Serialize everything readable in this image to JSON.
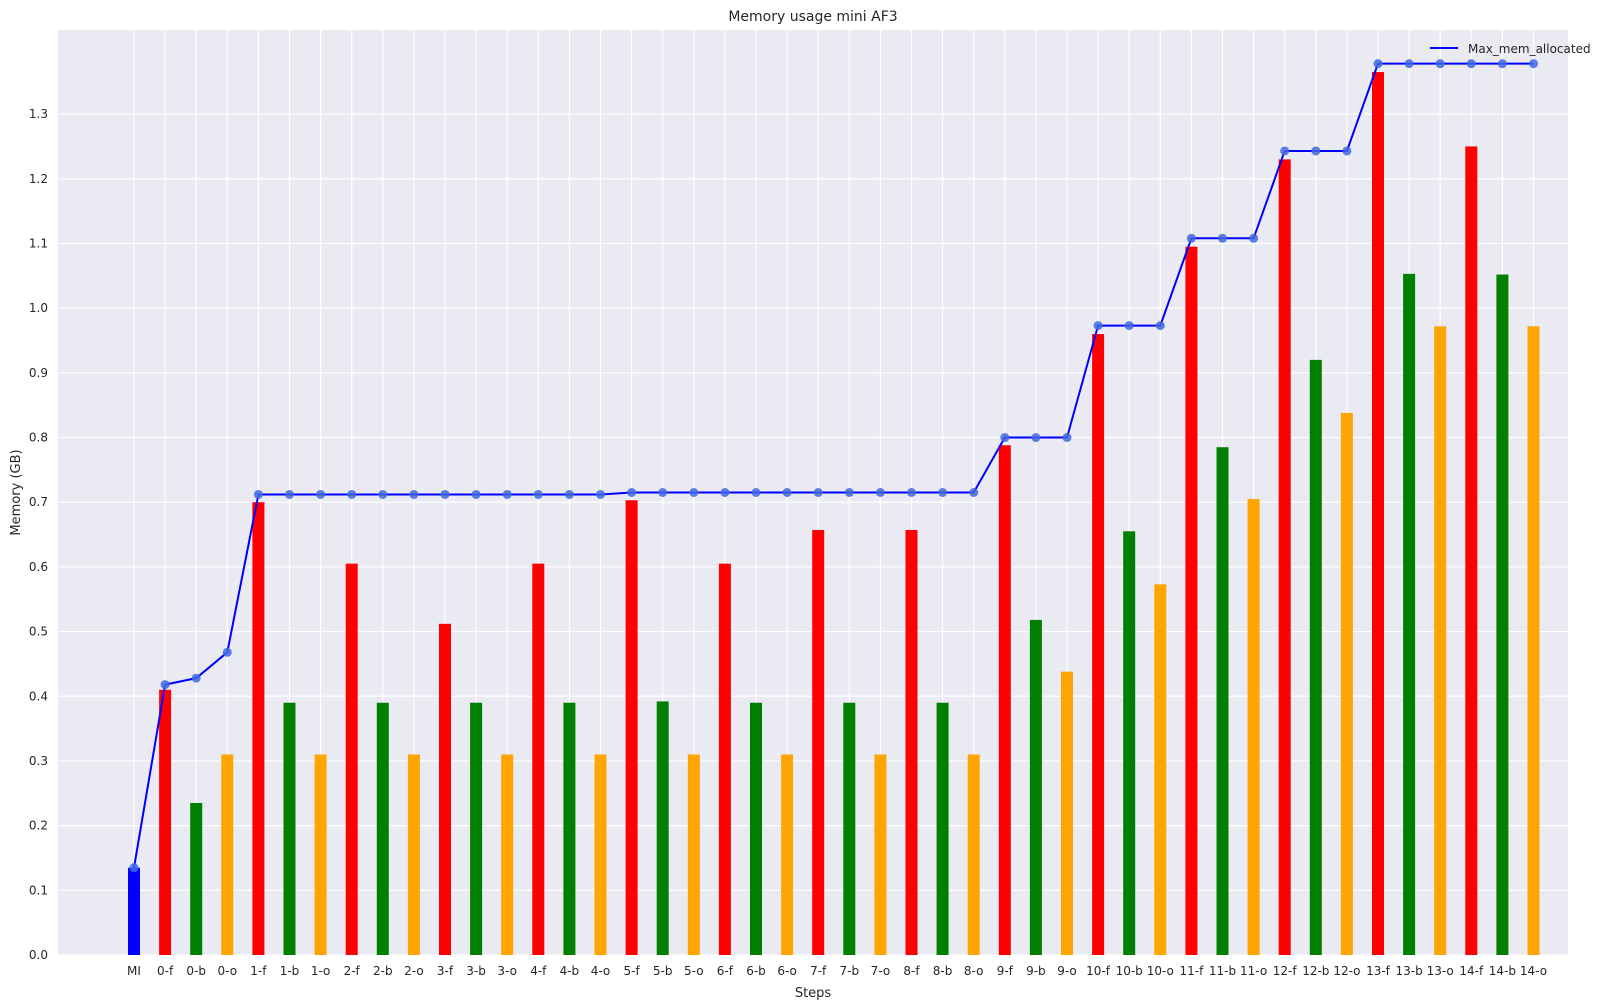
{
  "chart_data": {
    "type": "bar",
    "title": "Memory usage mini AF3",
    "xlabel": "Steps",
    "ylabel": "Memory (GB)",
    "ylim": [
      0,
      1.43
    ],
    "yticks": [
      0.0,
      0.1,
      0.2,
      0.3,
      0.4,
      0.5,
      0.6,
      0.7,
      0.8,
      0.9,
      1.0,
      1.1,
      1.2,
      1.3
    ],
    "grid": true,
    "legend_position": "top-right",
    "categories": [
      "MI",
      "0-f",
      "0-b",
      "0-o",
      "1-f",
      "1-b",
      "1-o",
      "2-f",
      "2-b",
      "2-o",
      "3-f",
      "3-b",
      "3-o",
      "4-f",
      "4-b",
      "4-o",
      "5-f",
      "5-b",
      "5-o",
      "6-f",
      "6-b",
      "6-o",
      "7-f",
      "7-b",
      "7-o",
      "8-f",
      "8-b",
      "8-o",
      "9-f",
      "9-b",
      "9-o",
      "10-f",
      "10-b",
      "10-o",
      "11-f",
      "11-b",
      "11-o",
      "12-f",
      "12-b",
      "12-o",
      "13-f",
      "13-b",
      "13-o",
      "14-f",
      "14-b",
      "14-o"
    ],
    "values": [
      0.135,
      0.41,
      0.235,
      0.31,
      0.7,
      0.39,
      0.31,
      0.605,
      0.39,
      0.31,
      0.512,
      0.39,
      0.31,
      0.605,
      0.39,
      0.31,
      0.703,
      0.392,
      0.31,
      0.605,
      0.39,
      0.31,
      0.657,
      0.39,
      0.31,
      0.657,
      0.39,
      0.31,
      0.788,
      0.518,
      0.438,
      0.96,
      0.655,
      0.573,
      1.095,
      0.785,
      0.705,
      1.23,
      0.92,
      0.838,
      1.365,
      1.053,
      0.972,
      1.25,
      1.052,
      0.972
    ],
    "bar_colors": [
      "#0000ff",
      "#ff0000",
      "#008000",
      "#ffa500",
      "#ff0000",
      "#008000",
      "#ffa500",
      "#ff0000",
      "#008000",
      "#ffa500",
      "#ff0000",
      "#008000",
      "#ffa500",
      "#ff0000",
      "#008000",
      "#ffa500",
      "#ff0000",
      "#008000",
      "#ffa500",
      "#ff0000",
      "#008000",
      "#ffa500",
      "#ff0000",
      "#008000",
      "#ffa500",
      "#ff0000",
      "#008000",
      "#ffa500",
      "#ff0000",
      "#008000",
      "#ffa500",
      "#ff0000",
      "#008000",
      "#ffa500",
      "#ff0000",
      "#008000",
      "#ffa500",
      "#ff0000",
      "#008000",
      "#ffa500",
      "#ff0000",
      "#008000",
      "#ffa500",
      "#ff0000",
      "#008000",
      "#ffa500"
    ],
    "series": [
      {
        "name": "Max_mem_allocated",
        "type": "line",
        "color": "#0000ff",
        "marker_color": "#4169e1",
        "values": [
          0.135,
          0.418,
          0.428,
          0.468,
          0.712,
          0.712,
          0.712,
          0.712,
          0.712,
          0.712,
          0.712,
          0.712,
          0.712,
          0.712,
          0.712,
          0.712,
          0.715,
          0.715,
          0.715,
          0.715,
          0.715,
          0.715,
          0.715,
          0.715,
          0.715,
          0.715,
          0.715,
          0.715,
          0.8,
          0.8,
          0.8,
          0.973,
          0.973,
          0.973,
          1.108,
          1.108,
          1.108,
          1.243,
          1.243,
          1.243,
          1.378,
          1.378,
          1.378,
          1.378,
          1.378,
          1.378
        ]
      }
    ]
  }
}
